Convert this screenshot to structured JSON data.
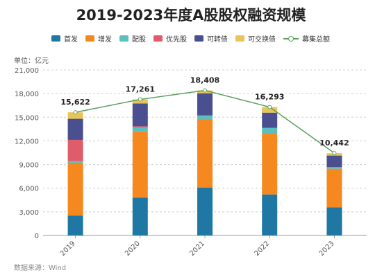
{
  "title": "2019-2023年度A股股权融资规模",
  "unit_label": "单位：亿元",
  "source": "数据来源：Wind",
  "chart_data": {
    "type": "bar",
    "stacked": true,
    "categories": [
      "2019",
      "2020",
      "2021",
      "2022",
      "2023"
    ],
    "ylim": [
      0,
      21000
    ],
    "yticks": [
      0,
      3000,
      6000,
      9000,
      12000,
      15000,
      18000,
      21000
    ],
    "ytick_labels": [
      "0",
      "3,000",
      "6,000",
      "9,000",
      "12,000",
      "15,000",
      "18,000",
      "21,000"
    ],
    "grid": true,
    "legend_position": "top",
    "series": [
      {
        "name": "首发",
        "color": "#1f77a4",
        "values": [
          2530,
          4800,
          6060,
          5200,
          3570
        ]
      },
      {
        "name": "增发",
        "color": "#f5891f",
        "values": [
          6700,
          8400,
          8700,
          7800,
          4900
        ]
      },
      {
        "name": "配股",
        "color": "#5bbfbf",
        "values": [
          200,
          500,
          430,
          650,
          200
        ]
      },
      {
        "name": "优先股",
        "color": "#e05c6a",
        "values": [
          2700,
          150,
          50,
          0,
          0
        ]
      },
      {
        "name": "可转债",
        "color": "#4a4f8f",
        "values": [
          2670,
          2900,
          2800,
          1930,
          1470
        ]
      },
      {
        "name": "可交换债",
        "color": "#e8c558",
        "values": [
          822,
          511,
          368,
          713,
          302
        ]
      }
    ],
    "total_series": {
      "name": "募集总额",
      "color": "#5a9e5a",
      "values": [
        15622,
        17261,
        18408,
        16293,
        10442
      ],
      "labels": [
        "15,622",
        "17,261",
        "18,408",
        "16,293",
        "10,442"
      ]
    }
  }
}
